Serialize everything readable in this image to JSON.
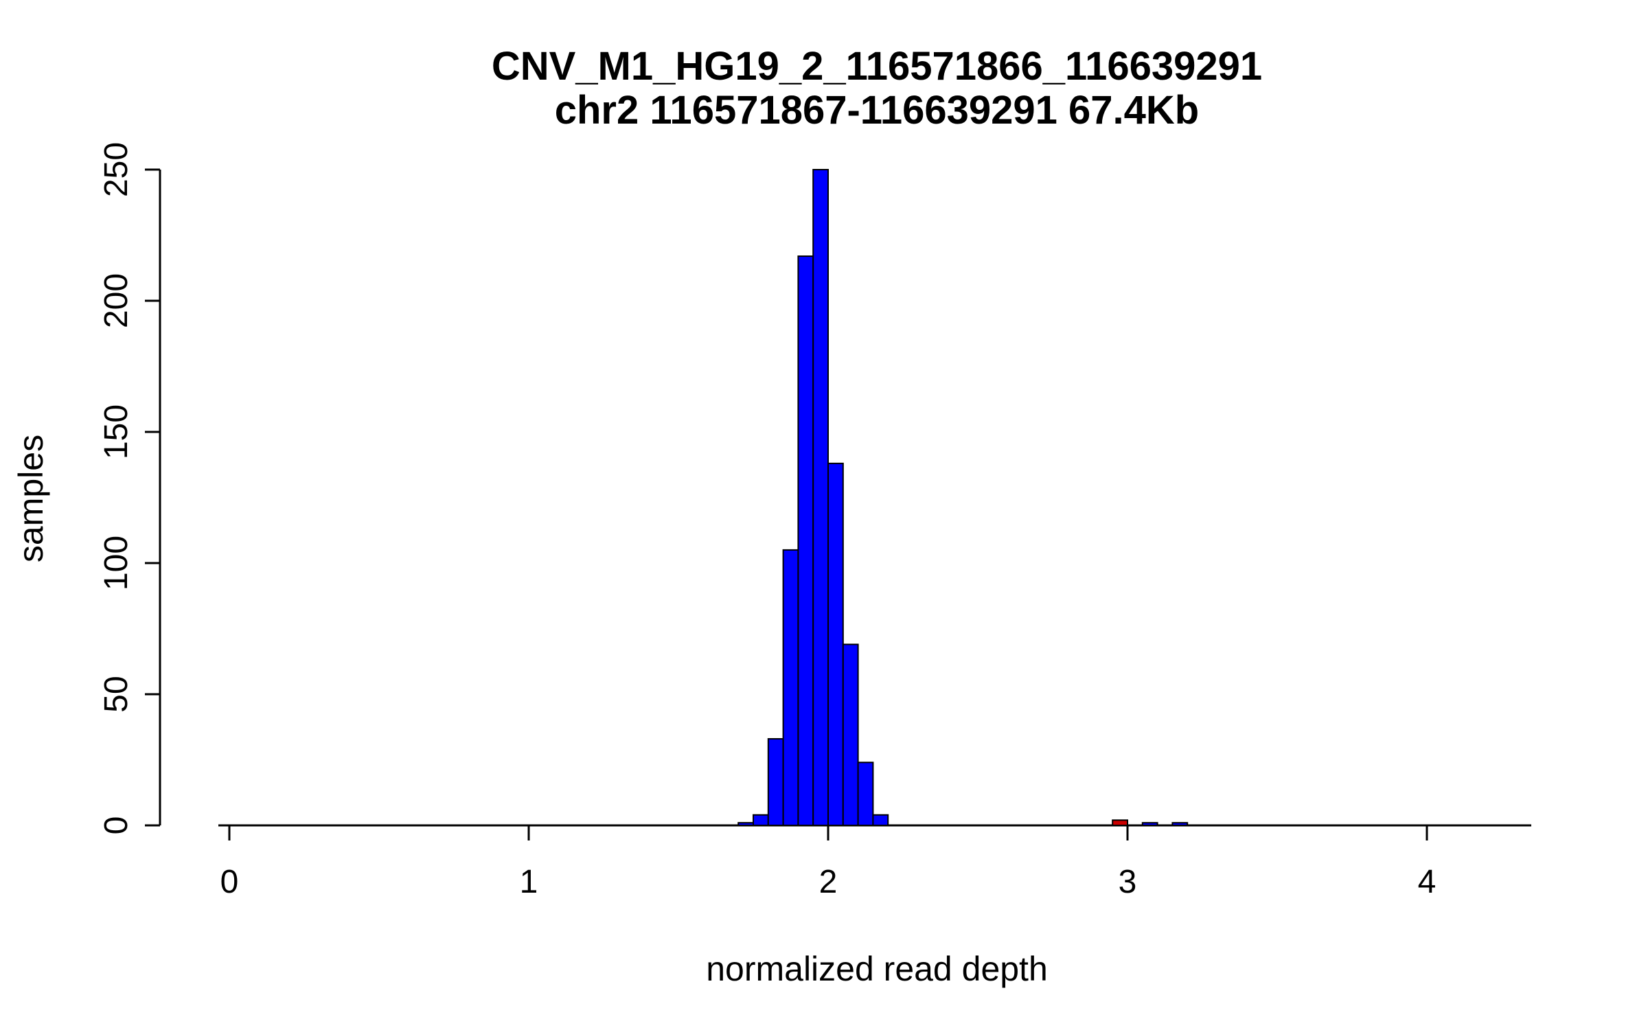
{
  "figure": {
    "background": "#FFFFFF"
  },
  "chart_data": {
    "type": "bar",
    "chart_kind": "histogram",
    "title": "CNV_M1_HG19_2_116571866_116639291",
    "subtitle": "chr2 116571867-116639291 67.4Kb",
    "xlabel": "normalized read depth",
    "ylabel": "samples",
    "xlim": [
      -0.04,
      4.38
    ],
    "ylim": [
      0,
      250
    ],
    "x_ticks": [
      0,
      1,
      2,
      3,
      4
    ],
    "y_ticks": [
      0,
      50,
      100,
      150,
      200,
      250
    ],
    "bin_width": 0.05,
    "bar_fill": "#0000FF",
    "highlight_fill": "#CC0000",
    "axis_color": "#000000",
    "grid": false,
    "legend_position": "none",
    "bars": [
      {
        "x": 1.7,
        "count": 1
      },
      {
        "x": 1.75,
        "count": 4
      },
      {
        "x": 1.8,
        "count": 33
      },
      {
        "x": 1.85,
        "count": 105
      },
      {
        "x": 1.9,
        "count": 217
      },
      {
        "x": 1.95,
        "count": 250
      },
      {
        "x": 2.0,
        "count": 138
      },
      {
        "x": 2.05,
        "count": 69
      },
      {
        "x": 2.1,
        "count": 24
      },
      {
        "x": 2.15,
        "count": 4
      },
      {
        "x": 2.95,
        "count": 2,
        "highlight": true
      },
      {
        "x": 3.05,
        "count": 1
      },
      {
        "x": 3.15,
        "count": 1
      }
    ]
  }
}
